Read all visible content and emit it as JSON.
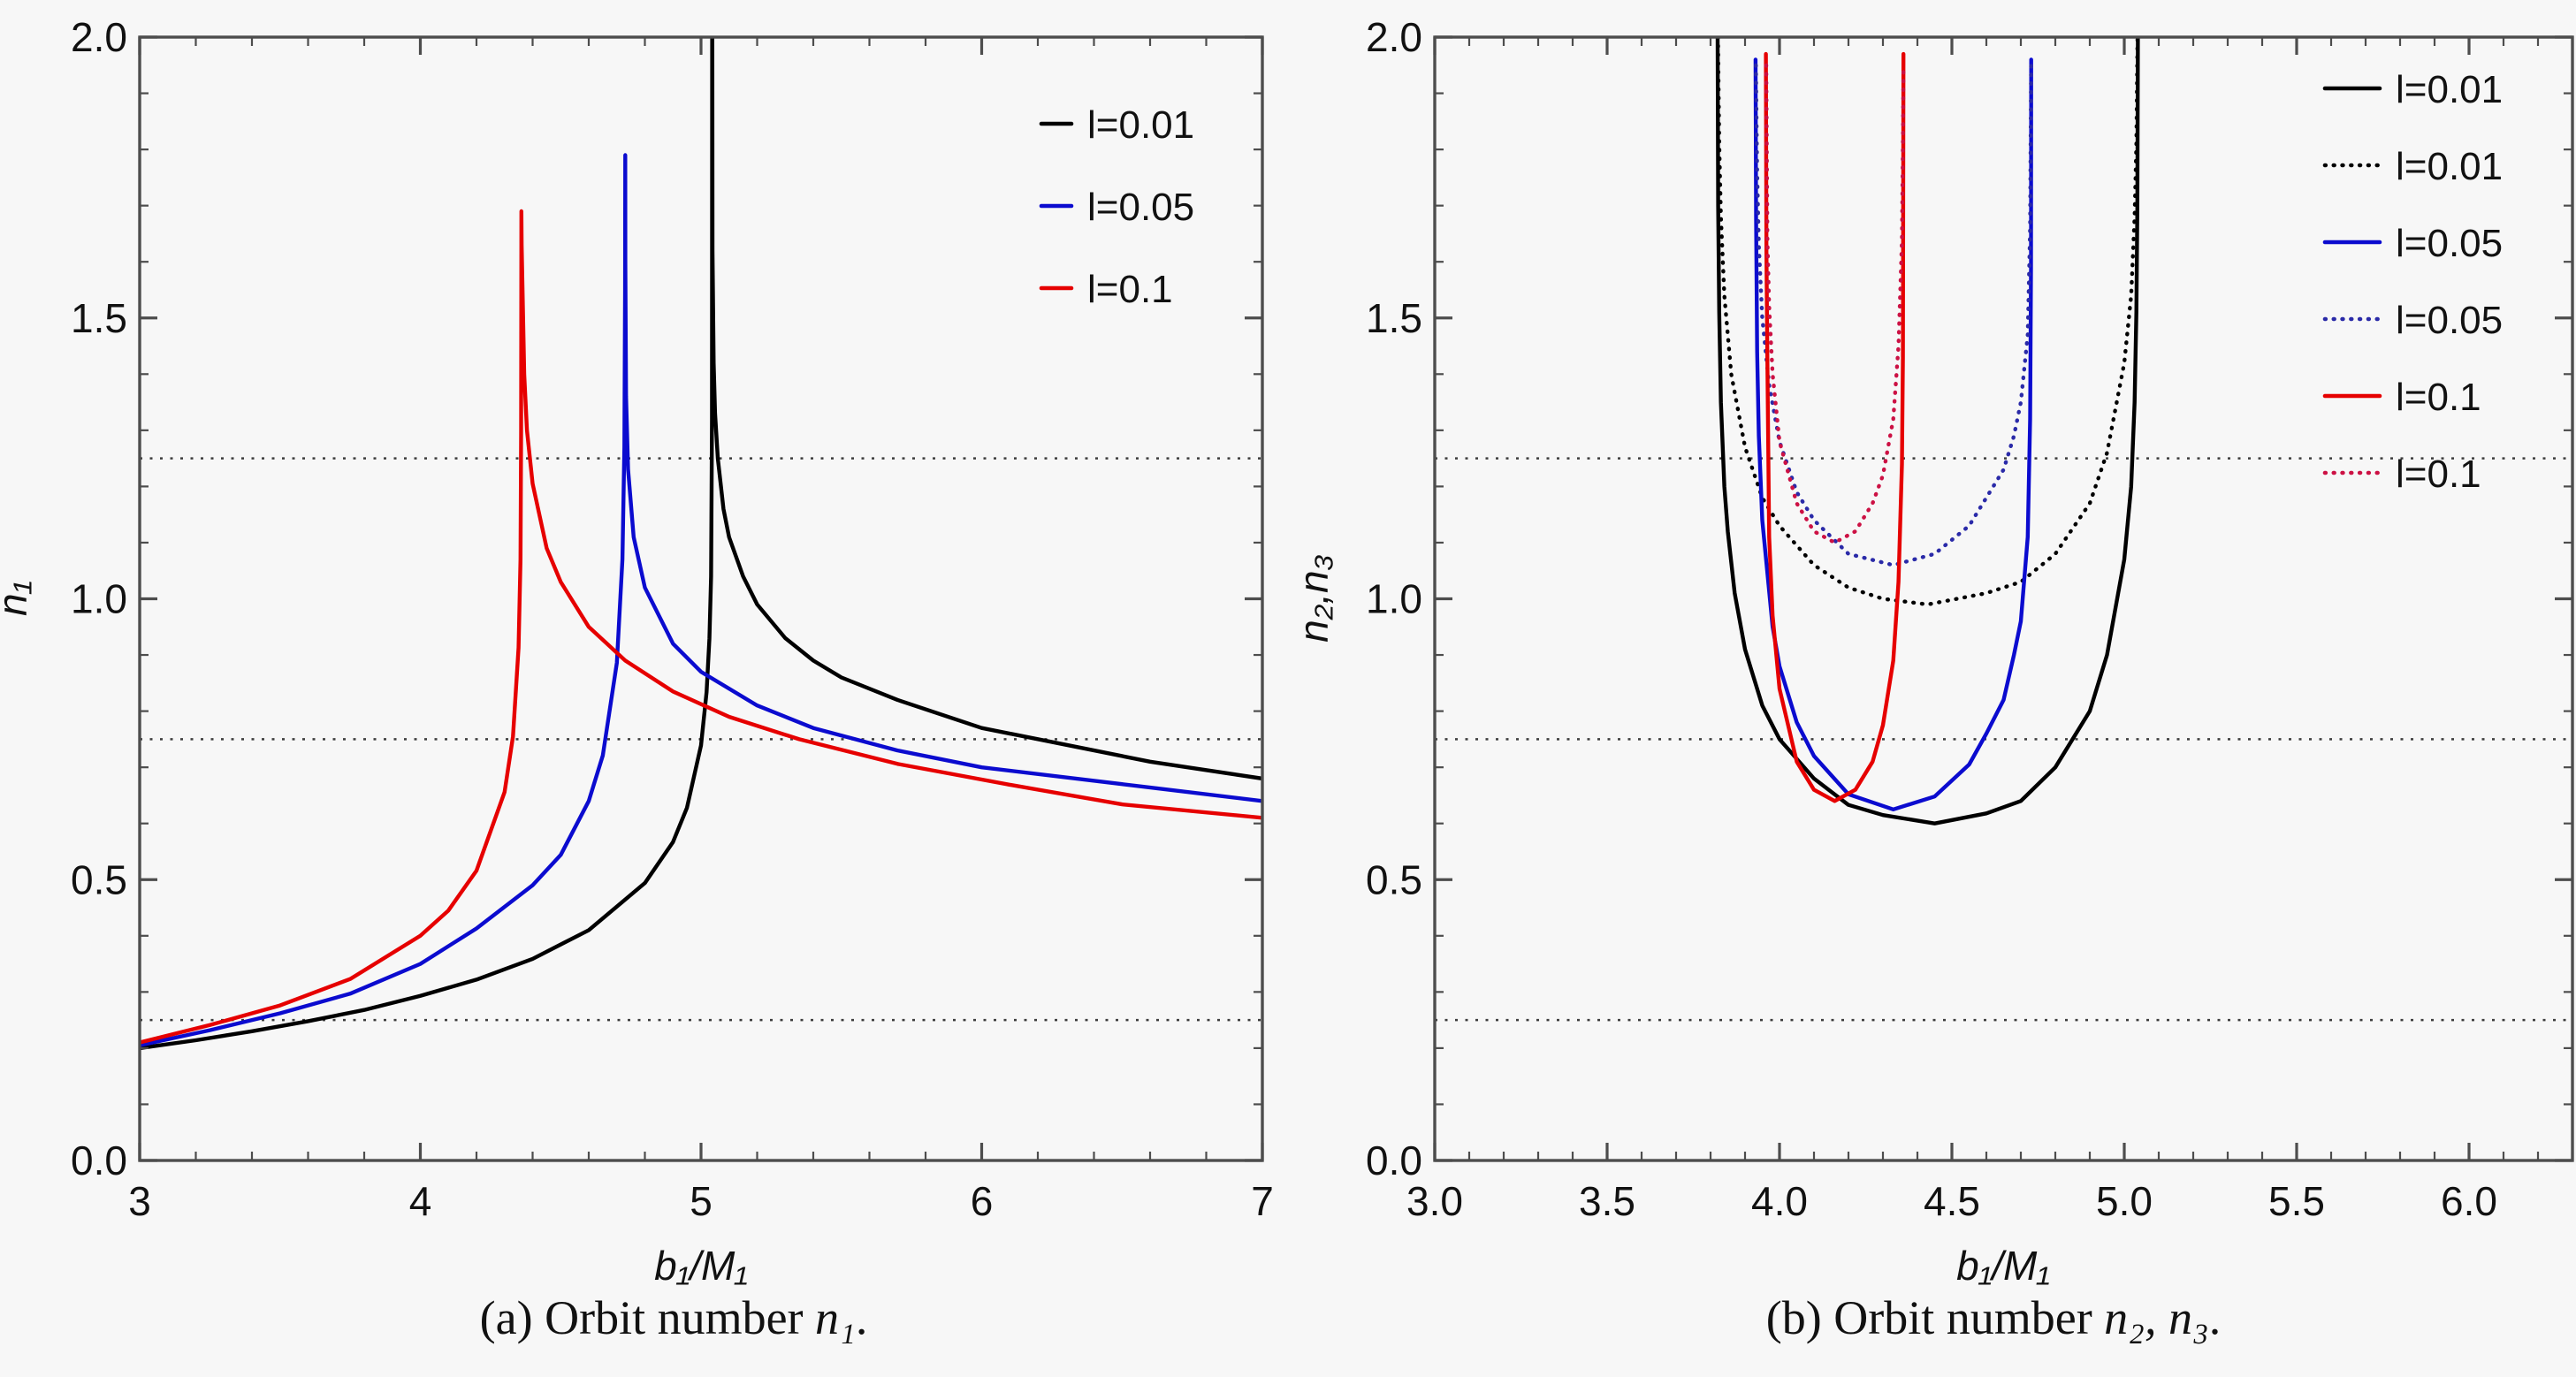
{
  "figure": {
    "background": "#f7f7f7",
    "frame_color": "#4d4d4d",
    "grid_color": "#3d3d3d",
    "text_color": "#111111",
    "captions": {
      "a": {
        "prefix": "(a) Orbit number ",
        "math": "n₁",
        "suffix": "."
      },
      "b": {
        "prefix": "(b) Orbit number ",
        "math": "n₂, n₃",
        "suffix": "."
      }
    }
  },
  "chart_data": [
    {
      "id": "panel-a",
      "type": "line",
      "title": "",
      "xlabel": "b₁/M₁",
      "ylabel": "n₁",
      "xlim": [
        3,
        7
      ],
      "ylim": [
        0,
        2
      ],
      "xticks": {
        "major": [
          3,
          4,
          5,
          6,
          7
        ],
        "labels": [
          "3",
          "4",
          "5",
          "6",
          "7"
        ],
        "minor_step": 0.2
      },
      "yticks": {
        "major": [
          0,
          0.5,
          1,
          1.5,
          2
        ],
        "labels": [
          "0.0",
          "0.5",
          "1.0",
          "1.5",
          "2.0"
        ],
        "minor_step": 0.1
      },
      "gridlines_y": [
        0.25,
        0.75,
        1.25
      ],
      "grid_style": "dotted",
      "legend": {
        "position": "top-right",
        "entries": [
          {
            "label": "l=0.01",
            "color": "#000000",
            "style": "solid"
          },
          {
            "label": "l=0.05",
            "color": "#0b0bcf",
            "style": "solid"
          },
          {
            "label": "l=0.1",
            "color": "#e60000",
            "style": "solid"
          }
        ]
      },
      "series": [
        {
          "name": "n1 l=0.01",
          "color": "#000000",
          "style": "solid",
          "asymptote_x": 5.04,
          "points": [
            [
              3,
              0.2
            ],
            [
              3.2,
              0.214
            ],
            [
              3.4,
              0.23
            ],
            [
              3.6,
              0.248
            ],
            [
              3.8,
              0.268
            ],
            [
              4.0,
              0.293
            ],
            [
              4.2,
              0.322
            ],
            [
              4.4,
              0.359
            ],
            [
              4.6,
              0.41
            ],
            [
              4.8,
              0.494
            ],
            [
              4.9,
              0.567
            ],
            [
              4.95,
              0.628
            ],
            [
              5.0,
              0.739
            ],
            [
              5.02,
              0.834
            ],
            [
              5.03,
              0.929
            ],
            [
              5.036,
              1.04
            ],
            [
              5.039,
              1.32
            ],
            [
              5.0398,
              2.0
            ],
            [
              5.0402,
              2.0
            ],
            [
              5.041,
              1.62
            ],
            [
              5.045,
              1.42
            ],
            [
              5.05,
              1.33
            ],
            [
              5.06,
              1.25
            ],
            [
              5.08,
              1.16
            ],
            [
              5.1,
              1.11
            ],
            [
              5.15,
              1.04
            ],
            [
              5.2,
              0.99
            ],
            [
              5.3,
              0.93
            ],
            [
              5.4,
              0.89
            ],
            [
              5.5,
              0.86
            ],
            [
              5.7,
              0.82
            ],
            [
              6.0,
              0.77
            ],
            [
              6.3,
              0.74
            ],
            [
              6.6,
              0.71
            ],
            [
              7.0,
              0.68
            ]
          ]
        },
        {
          "name": "n1 l=0.05",
          "color": "#0b0bcf",
          "style": "solid",
          "asymptote_x": 4.73,
          "points": [
            [
              3,
              0.205
            ],
            [
              3.25,
              0.232
            ],
            [
              3.5,
              0.262
            ],
            [
              3.75,
              0.297
            ],
            [
              4.0,
              0.35
            ],
            [
              4.2,
              0.413
            ],
            [
              4.4,
              0.49
            ],
            [
              4.5,
              0.544
            ],
            [
              4.6,
              0.64
            ],
            [
              4.65,
              0.721
            ],
            [
              4.7,
              0.886
            ],
            [
              4.72,
              1.07
            ],
            [
              4.727,
              1.27
            ],
            [
              4.7295,
              1.55
            ],
            [
              4.73,
              1.79
            ],
            [
              4.7305,
              1.6
            ],
            [
              4.733,
              1.36
            ],
            [
              4.74,
              1.23
            ],
            [
              4.76,
              1.11
            ],
            [
              4.8,
              1.02
            ],
            [
              4.9,
              0.92
            ],
            [
              5.0,
              0.87
            ],
            [
              5.2,
              0.81
            ],
            [
              5.4,
              0.77
            ],
            [
              5.7,
              0.73
            ],
            [
              6.0,
              0.7
            ],
            [
              6.5,
              0.67
            ],
            [
              7.0,
              0.64
            ]
          ]
        },
        {
          "name": "n1 l=0.1",
          "color": "#e60000",
          "style": "solid",
          "asymptote_x": 4.36,
          "points": [
            [
              3,
              0.21
            ],
            [
              3.25,
              0.241
            ],
            [
              3.5,
              0.276
            ],
            [
              3.75,
              0.323
            ],
            [
              4.0,
              0.4
            ],
            [
              4.1,
              0.445
            ],
            [
              4.2,
              0.516
            ],
            [
              4.3,
              0.656
            ],
            [
              4.33,
              0.755
            ],
            [
              4.35,
              0.913
            ],
            [
              4.357,
              1.07
            ],
            [
              4.359,
              1.3
            ],
            [
              4.36,
              1.69
            ],
            [
              4.361,
              1.63
            ],
            [
              4.37,
              1.4
            ],
            [
              4.38,
              1.3
            ],
            [
              4.4,
              1.205
            ],
            [
              4.45,
              1.09
            ],
            [
              4.5,
              1.03
            ],
            [
              4.6,
              0.95
            ],
            [
              4.73,
              0.89
            ],
            [
              4.9,
              0.835
            ],
            [
              5.1,
              0.79
            ],
            [
              5.35,
              0.75
            ],
            [
              5.7,
              0.706
            ],
            [
              6.1,
              0.669
            ],
            [
              6.5,
              0.634
            ],
            [
              7.0,
              0.61
            ]
          ]
        }
      ]
    },
    {
      "id": "panel-b",
      "type": "line",
      "title": "",
      "xlabel": "b₁/M₁",
      "ylabel": "n₂,n₃",
      "xlim": [
        3.0,
        6.3
      ],
      "ylim": [
        0,
        2
      ],
      "xticks": {
        "major": [
          3.0,
          3.5,
          4.0,
          4.5,
          5.0,
          5.5,
          6.0
        ],
        "labels": [
          "3.0",
          "3.5",
          "4.0",
          "4.5",
          "5.0",
          "5.5",
          "6.0"
        ],
        "minor_step": 0.1
      },
      "yticks": {
        "major": [
          0,
          0.5,
          1,
          1.5,
          2
        ],
        "labels": [
          "0.0",
          "0.5",
          "1.0",
          "1.5",
          "2.0"
        ],
        "minor_step": 0.1
      },
      "gridlines_y": [
        0.25,
        0.75,
        1.25
      ],
      "grid_style": "dotted",
      "legend": {
        "position": "top-right",
        "entries": [
          {
            "label": "l=0.01",
            "color": "#000000",
            "style": "solid"
          },
          {
            "label": "l=0.01",
            "color": "#000000",
            "style": "dotted"
          },
          {
            "label": "l=0.05",
            "color": "#0b0bcf",
            "style": "solid"
          },
          {
            "label": "l=0.05",
            "color": "#2a2aa8",
            "style": "dotted"
          },
          {
            "label": "l=0.1",
            "color": "#e60000",
            "style": "solid"
          },
          {
            "label": "l=0.1",
            "color": "#cc1144",
            "style": "dotted"
          }
        ]
      },
      "series": [
        {
          "name": "n2 l=0.01",
          "component": "n2",
          "color": "#000000",
          "style": "solid",
          "asymptotes_x": [
            3.82,
            5.04
          ],
          "points": [
            [
              3.8205,
              2.0
            ],
            [
              3.822,
              1.7
            ],
            [
              3.825,
              1.51
            ],
            [
              3.83,
              1.35
            ],
            [
              3.84,
              1.2
            ],
            [
              3.85,
              1.12
            ],
            [
              3.87,
              1.01
            ],
            [
              3.9,
              0.91
            ],
            [
              3.95,
              0.81
            ],
            [
              4.0,
              0.75
            ],
            [
              4.1,
              0.68
            ],
            [
              4.2,
              0.633
            ],
            [
              4.3,
              0.615
            ],
            [
              4.45,
              0.6
            ],
            [
              4.6,
              0.618
            ],
            [
              4.7,
              0.64
            ],
            [
              4.8,
              0.7
            ],
            [
              4.9,
              0.8
            ],
            [
              4.95,
              0.9
            ],
            [
              5.0,
              1.07
            ],
            [
              5.02,
              1.2
            ],
            [
              5.03,
              1.35
            ],
            [
              5.035,
              1.51
            ],
            [
              5.038,
              1.7
            ],
            [
              5.0395,
              2.0
            ]
          ]
        },
        {
          "name": "n3 l=0.01",
          "component": "n3",
          "color": "#000000",
          "style": "dotted",
          "asymptotes_x": [
            3.82,
            5.04
          ],
          "points": [
            [
              3.8215,
              2.0
            ],
            [
              3.825,
              1.81
            ],
            [
              3.83,
              1.68
            ],
            [
              3.84,
              1.54
            ],
            [
              3.86,
              1.4
            ],
            [
              3.9,
              1.27
            ],
            [
              3.95,
              1.18
            ],
            [
              4.0,
              1.13
            ],
            [
              4.1,
              1.06
            ],
            [
              4.2,
              1.02
            ],
            [
              4.3,
              1.0
            ],
            [
              4.43,
              0.99
            ],
            [
              4.6,
              1.01
            ],
            [
              4.7,
              1.03
            ],
            [
              4.8,
              1.08
            ],
            [
              4.9,
              1.17
            ],
            [
              4.95,
              1.26
            ],
            [
              5.0,
              1.42
            ],
            [
              5.02,
              1.54
            ],
            [
              5.03,
              1.68
            ],
            [
              5.035,
              1.81
            ],
            [
              5.0385,
              2.0
            ]
          ]
        },
        {
          "name": "n2 l=0.05",
          "component": "n2",
          "color": "#0b0bcf",
          "style": "solid",
          "asymptotes_x": [
            3.93,
            4.73
          ],
          "points": [
            [
              3.9305,
              1.96
            ],
            [
              3.932,
              1.68
            ],
            [
              3.935,
              1.44
            ],
            [
              3.94,
              1.29
            ],
            [
              3.95,
              1.14
            ],
            [
              3.98,
              0.95
            ],
            [
              4.0,
              0.88
            ],
            [
              4.05,
              0.78
            ],
            [
              4.1,
              0.72
            ],
            [
              4.2,
              0.652
            ],
            [
              4.33,
              0.625
            ],
            [
              4.45,
              0.648
            ],
            [
              4.55,
              0.705
            ],
            [
              4.6,
              0.76
            ],
            [
              4.65,
              0.82
            ],
            [
              4.68,
              0.9
            ],
            [
              4.7,
              0.96
            ],
            [
              4.72,
              1.11
            ],
            [
              4.727,
              1.32
            ],
            [
              4.7295,
              1.59
            ],
            [
              4.7299,
              1.96
            ]
          ]
        },
        {
          "name": "n3 l=0.05",
          "component": "n3",
          "color": "#2a2aa8",
          "style": "dotted",
          "asymptotes_x": [
            3.93,
            4.73
          ],
          "points": [
            [
              3.9315,
              1.95
            ],
            [
              3.935,
              1.76
            ],
            [
              3.94,
              1.63
            ],
            [
              3.95,
              1.5
            ],
            [
              3.97,
              1.38
            ],
            [
              4.0,
              1.28
            ],
            [
              4.05,
              1.19
            ],
            [
              4.1,
              1.14
            ],
            [
              4.2,
              1.08
            ],
            [
              4.33,
              1.06
            ],
            [
              4.45,
              1.08
            ],
            [
              4.55,
              1.13
            ],
            [
              4.6,
              1.18
            ],
            [
              4.65,
              1.23
            ],
            [
              4.68,
              1.29
            ],
            [
              4.7,
              1.35
            ],
            [
              4.72,
              1.47
            ],
            [
              4.727,
              1.66
            ],
            [
              4.7297,
              1.95
            ]
          ]
        },
        {
          "name": "n2 l=0.1",
          "component": "n2",
          "color": "#e60000",
          "style": "solid",
          "asymptotes_x": [
            3.96,
            4.36
          ],
          "points": [
            [
              3.9605,
              1.97
            ],
            [
              3.962,
              1.62
            ],
            [
              3.965,
              1.42
            ],
            [
              3.97,
              1.11
            ],
            [
              3.98,
              0.97
            ],
            [
              4.0,
              0.84
            ],
            [
              4.05,
              0.71
            ],
            [
              4.1,
              0.66
            ],
            [
              4.16,
              0.64
            ],
            [
              4.22,
              0.66
            ],
            [
              4.27,
              0.71
            ],
            [
              4.3,
              0.775
            ],
            [
              4.33,
              0.89
            ],
            [
              4.345,
              1.03
            ],
            [
              4.355,
              1.24
            ],
            [
              4.358,
              1.43
            ],
            [
              4.3595,
              1.97
            ]
          ]
        },
        {
          "name": "n3 l=0.1",
          "component": "n3",
          "color": "#cc1144",
          "style": "dotted",
          "asymptotes_x": [
            3.96,
            4.36
          ],
          "points": [
            [
              3.9615,
              1.95
            ],
            [
              3.965,
              1.64
            ],
            [
              3.97,
              1.52
            ],
            [
              3.98,
              1.4
            ],
            [
              4.0,
              1.28
            ],
            [
              4.05,
              1.17
            ],
            [
              4.1,
              1.12
            ],
            [
              4.16,
              1.1
            ],
            [
              4.22,
              1.12
            ],
            [
              4.27,
              1.17
            ],
            [
              4.3,
              1.22
            ],
            [
              4.33,
              1.32
            ],
            [
              4.345,
              1.45
            ],
            [
              4.355,
              1.64
            ],
            [
              4.358,
              1.81
            ],
            [
              4.3595,
              1.95
            ]
          ]
        }
      ]
    }
  ]
}
